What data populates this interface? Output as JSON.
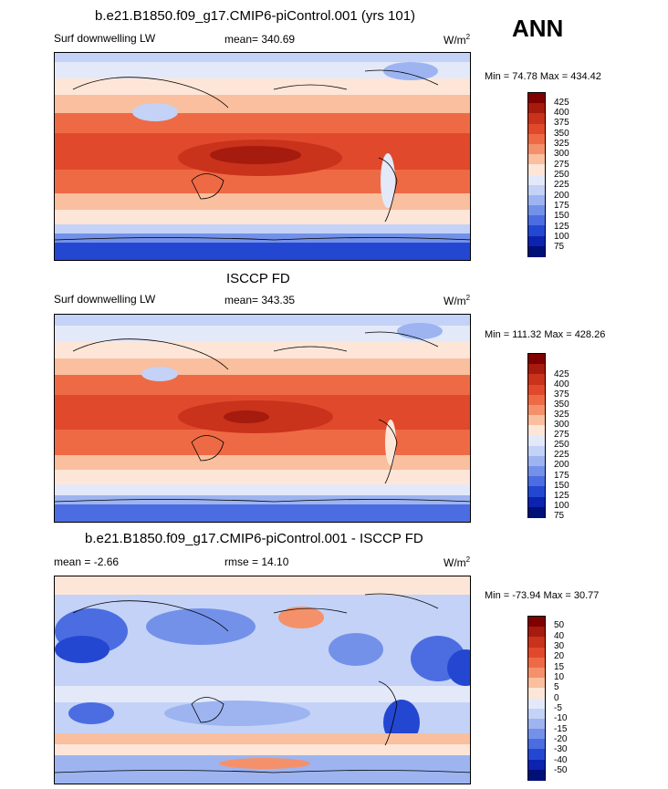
{
  "season": "ANN",
  "units": "W/m",
  "units_sup": "2",
  "chart_data": [
    {
      "type": "heatmap",
      "title": "b.e21.B1850.f09_g17.CMIP6-piControl.001 (yrs 101)",
      "left_label": "Surf downwelling LW",
      "stat_label": "mean=",
      "stat_value": "340.69",
      "min_label": "Min =",
      "min_value": "74.78",
      "max_label": "Max =",
      "max_value": "434.42",
      "colorbar_ticks": [
        "425",
        "400",
        "375",
        "350",
        "325",
        "300",
        "275",
        "250",
        "225",
        "200",
        "175",
        "150",
        "125",
        "100",
        "75"
      ],
      "colorbar_colors": [
        "#800000",
        "#a51b0d",
        "#c9321b",
        "#e0492b",
        "#ee6a45",
        "#f4916a",
        "#f9bf9e",
        "#fde6d8",
        "#e3e9f9",
        "#c3d2f6",
        "#9db4f1",
        "#7391e8",
        "#4b6de1",
        "#2447d2",
        "#0b23ae",
        "#001079"
      ]
    },
    {
      "type": "heatmap",
      "title": "ISCCP FD",
      "left_label": "Surf downwelling LW",
      "stat_label": "mean=",
      "stat_value": "343.35",
      "min_label": "Min =",
      "min_value": "111.32",
      "max_label": "Max =",
      "max_value": "428.26",
      "colorbar_ticks": [
        "425",
        "400",
        "375",
        "350",
        "325",
        "300",
        "275",
        "250",
        "225",
        "200",
        "175",
        "150",
        "125",
        "100",
        "75"
      ],
      "colorbar_colors": [
        "#800000",
        "#a51b0d",
        "#c9321b",
        "#e0492b",
        "#ee6a45",
        "#f4916a",
        "#f9bf9e",
        "#fde6d8",
        "#e3e9f9",
        "#c3d2f6",
        "#9db4f1",
        "#7391e8",
        "#4b6de1",
        "#2447d2",
        "#0b23ae",
        "#001079"
      ]
    },
    {
      "type": "heatmap",
      "title": "b.e21.B1850.f09_g17.CMIP6-piControl.001 - ISCCP FD",
      "left_label": "mean =",
      "left_value": "-2.66",
      "stat_label": "rmse =",
      "stat_value": "14.10",
      "min_label": "Min =",
      "min_value": "-73.94",
      "max_label": "Max =",
      "max_value": "30.77",
      "colorbar_ticks": [
        "50",
        "40",
        "30",
        "20",
        "15",
        "10",
        "5",
        "0",
        "-5",
        "-10",
        "-15",
        "-20",
        "-30",
        "-40",
        "-50"
      ],
      "colorbar_colors": [
        "#800000",
        "#a51b0d",
        "#c9321b",
        "#e0492b",
        "#ee6a45",
        "#f4916a",
        "#f9bf9e",
        "#fde6d8",
        "#e3e9f9",
        "#c3d2f6",
        "#9db4f1",
        "#7391e8",
        "#4b6de1",
        "#2447d2",
        "#0b23ae",
        "#001079"
      ]
    }
  ]
}
